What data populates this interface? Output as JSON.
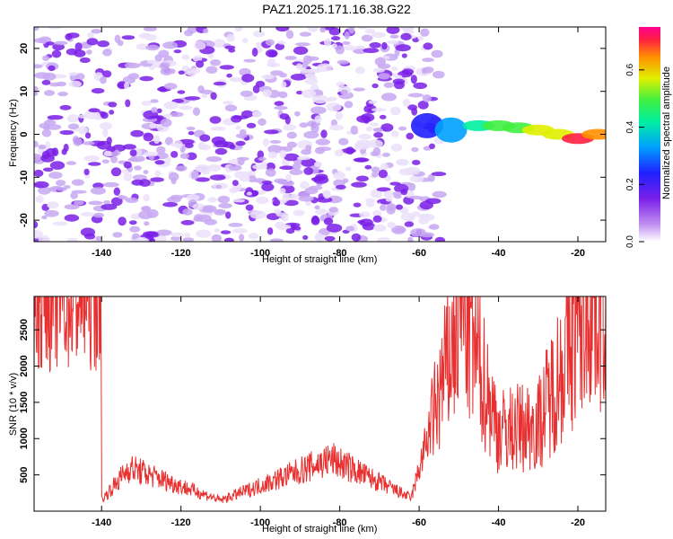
{
  "title": "PAZ1.2025.171.16.38.G22",
  "colors": {
    "snr_line": "#e83030",
    "spectro_low": "#dcc8f5",
    "spectro_mid": "#7a20e8",
    "frame": "#000000"
  },
  "chart_data": [
    {
      "type": "heatmap",
      "xlabel": "Height of straight line (km)",
      "ylabel": "Frequency (Hz)",
      "xlim": [
        -157,
        -13
      ],
      "ylim": [
        -25,
        25
      ],
      "x_ticks": [
        -140,
        -120,
        -100,
        -80,
        -60,
        -40,
        -20
      ],
      "y_ticks": [
        -20,
        -10,
        0,
        10,
        20
      ],
      "colorbar": {
        "label": "Normalized spectral amplitude",
        "range": [
          0.0,
          0.75
        ],
        "ticks": [
          0.0,
          0.2,
          0.4,
          0.6
        ],
        "tick_labels": [
          "0.0",
          "0.2",
          "0.4",
          "0.6"
        ],
        "colormap": "rainbow"
      },
      "ridge": [
        {
          "x": -58,
          "y": 2,
          "v": 0.15
        },
        {
          "x": -52,
          "y": 1,
          "v": 0.25
        },
        {
          "x": -45,
          "y": 2,
          "v": 0.3
        },
        {
          "x": -40,
          "y": 2,
          "v": 0.45
        },
        {
          "x": -35,
          "y": 1.5,
          "v": 0.4
        },
        {
          "x": -30,
          "y": 1,
          "v": 0.5
        },
        {
          "x": -25,
          "y": 0,
          "v": 0.55
        },
        {
          "x": -20,
          "y": -1,
          "v": 0.7
        },
        {
          "x": -15,
          "y": 0,
          "v": 0.6
        }
      ]
    },
    {
      "type": "line",
      "xlabel": "Height of straight line (km)",
      "ylabel": "SNR (10 * v/v)",
      "xlim": [
        -157,
        -13
      ],
      "ylim": [
        0,
        2960
      ],
      "x_ticks": [
        -140,
        -120,
        -100,
        -80,
        -60,
        -40,
        -20
      ],
      "y_ticks": [
        500,
        1000,
        1500,
        2000,
        2500
      ],
      "features": [
        {
          "x": -140,
          "y": 150
        },
        {
          "x": -133,
          "y": 600
        },
        {
          "x": -110,
          "y": 150
        },
        {
          "x": -82,
          "y": 720
        },
        {
          "x": -62,
          "y": 180
        },
        {
          "x": -49,
          "y": 2800
        },
        {
          "x": -40,
          "y": 1100
        },
        {
          "x": -30,
          "y": 1200
        },
        {
          "x": -17,
          "y": 2950
        }
      ]
    }
  ]
}
